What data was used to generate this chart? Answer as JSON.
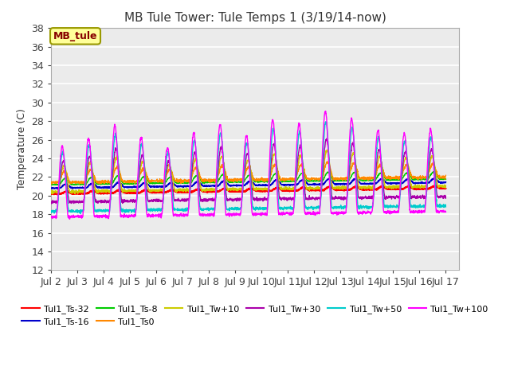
{
  "title": "MB Tule Tower: Tule Temps 1 (3/19/14-now)",
  "ylabel": "Temperature (C)",
  "ylim": [
    12,
    38
  ],
  "yticks": [
    12,
    14,
    16,
    18,
    20,
    22,
    24,
    26,
    28,
    30,
    32,
    34,
    36,
    38
  ],
  "xtick_labels": [
    "Jul 2",
    "Jul 3",
    "Jul 4",
    "Jul 5",
    "Jul 6",
    "Jul 7",
    "Jul 8",
    "Jul 9",
    "Jul 10",
    "Jul 11",
    "Jul 12",
    "Jul 13",
    "Jul 14",
    "Jul 15",
    "Jul 16",
    "Jul 17"
  ],
  "series": [
    {
      "name": "Tul1_Ts-32",
      "color": "#ff0000",
      "base": 20.3,
      "amplitude": 0.3,
      "phase": 0.0,
      "linewidth": 1.5
    },
    {
      "name": "Tul1_Ts-16",
      "color": "#0000cc",
      "base": 21.0,
      "amplitude": 0.5,
      "phase": 0.02,
      "linewidth": 1.2
    },
    {
      "name": "Tul1_Ts-8",
      "color": "#00cc00",
      "base": 21.5,
      "amplitude": 0.8,
      "phase": 0.05,
      "linewidth": 1.0
    },
    {
      "name": "Tul1_Ts0",
      "color": "#ff8800",
      "base": 22.0,
      "amplitude": 1.5,
      "phase": 0.08,
      "linewidth": 1.0
    },
    {
      "name": "Tul1_Tw+10",
      "color": "#cccc00",
      "base": 21.8,
      "amplitude": 3.5,
      "phase": 0.1,
      "linewidth": 1.0
    },
    {
      "name": "Tul1_Tw+30",
      "color": "#aa00aa",
      "base": 21.5,
      "amplitude": 5.5,
      "phase": 0.12,
      "linewidth": 1.0
    },
    {
      "name": "Tul1_Tw+50",
      "color": "#00cccc",
      "base": 21.5,
      "amplitude": 8.0,
      "phase": 0.14,
      "linewidth": 1.0
    },
    {
      "name": "Tul1_Tw+100",
      "color": "#ff00ff",
      "base": 21.5,
      "amplitude": 9.5,
      "phase": 0.16,
      "linewidth": 1.0
    }
  ],
  "legend_box_facecolor": "#ffff99",
  "legend_box_edgecolor": "#999900",
  "legend_text": "MB_tule",
  "legend_text_color": "#880000",
  "plot_bg_color": "#ebebeb",
  "fig_bg_color": "#ffffff",
  "grid_color": "#ffffff",
  "title_fontsize": 11,
  "tick_fontsize": 9,
  "legend_fontsize": 8,
  "day_peak_heights": [
    0.75,
    0.85,
    1.0,
    0.85,
    0.72,
    0.9,
    1.0,
    0.85,
    1.05,
    1.0,
    1.15,
    1.05,
    0.9,
    0.85,
    0.9
  ],
  "trend_slope": 0.04
}
